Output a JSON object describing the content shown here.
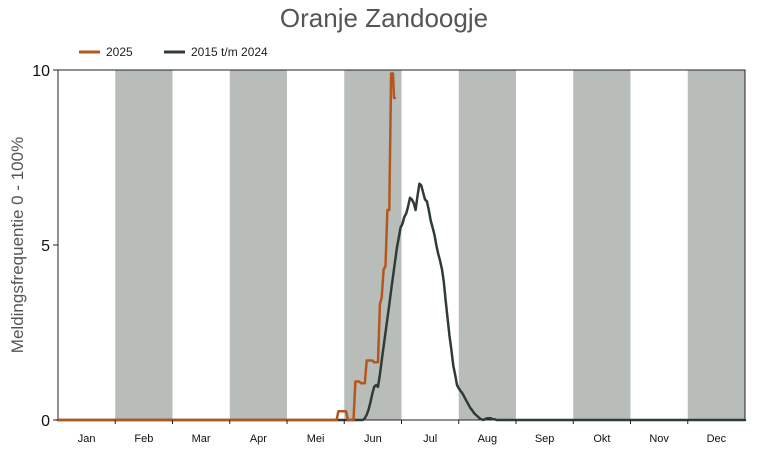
{
  "chart_data": {
    "type": "line",
    "title": "Oranje Zandoogje",
    "ylabel": "Meldingsfrequentie 0 - 100%",
    "xlabel": "",
    "ylim": [
      0,
      10
    ],
    "yticks": [
      "0",
      "5",
      "10"
    ],
    "months": [
      "Jan",
      "Feb",
      "Mar",
      "Apr",
      "Mei",
      "Jun",
      "Jul",
      "Aug",
      "Sep",
      "Okt",
      "Nov",
      "Dec"
    ],
    "shaded_months": [
      "Feb",
      "Apr",
      "Jun",
      "Aug",
      "Okt",
      "Dec"
    ],
    "grid": false,
    "legend_position": "top-left",
    "series": [
      {
        "name": "2025",
        "color": "#b5571c",
        "x": [
          0,
          148,
          149,
          150,
          153,
          154,
          157,
          158,
          160,
          161,
          163,
          164,
          167,
          168,
          170,
          171,
          172,
          173,
          174,
          175,
          176,
          177,
          178,
          178.5,
          179
        ],
        "y": [
          0,
          0,
          0.25,
          0.25,
          0.25,
          0.0,
          0.0,
          1.1,
          1.1,
          1.05,
          1.05,
          1.7,
          1.7,
          1.65,
          1.65,
          3.3,
          3.5,
          4.3,
          4.4,
          6.0,
          6.0,
          9.9,
          9.9,
          9.2,
          9.2
        ]
      },
      {
        "name": "2015 t/m 2024",
        "color": "#2f3b37",
        "x": [
          0,
          150,
          151,
          152,
          153,
          154,
          155,
          156,
          157,
          158,
          159,
          160,
          161,
          162,
          163,
          164,
          165,
          166,
          167,
          168,
          169,
          170,
          171,
          172,
          173,
          174,
          175,
          176,
          177,
          178,
          179,
          180,
          181,
          182,
          183,
          184,
          185,
          186,
          187,
          188,
          189,
          190,
          191,
          192,
          193,
          194,
          195,
          196,
          197,
          198,
          199,
          200,
          201,
          202,
          203,
          204,
          205,
          206,
          207,
          208,
          209,
          210,
          211,
          212,
          213,
          214,
          215,
          216,
          217,
          218,
          219,
          220,
          221,
          222,
          223,
          224,
          225,
          226,
          227,
          228,
          229,
          230,
          231,
          232,
          233,
          234,
          235,
          236,
          237,
          238,
          239,
          240,
          241,
          242,
          243,
          244,
          245,
          246,
          248,
          250,
          365
        ],
        "y": [
          0,
          0,
          0,
          0,
          0,
          0,
          0,
          0,
          0,
          0,
          0,
          0,
          0,
          0,
          0.05,
          0.15,
          0.3,
          0.5,
          0.75,
          0.95,
          1.0,
          0.95,
          1.3,
          1.7,
          2.1,
          2.5,
          2.9,
          3.3,
          3.7,
          4.1,
          4.5,
          4.9,
          5.2,
          5.5,
          5.6,
          5.8,
          5.9,
          6.1,
          6.35,
          6.3,
          6.2,
          6.0,
          6.4,
          6.75,
          6.7,
          6.5,
          6.3,
          6.25,
          6.0,
          5.7,
          5.5,
          5.3,
          5.0,
          4.75,
          4.55,
          4.3,
          3.95,
          3.4,
          2.9,
          2.4,
          2.0,
          1.55,
          1.3,
          1.0,
          0.9,
          0.82,
          0.75,
          0.65,
          0.55,
          0.45,
          0.35,
          0.28,
          0.2,
          0.15,
          0.1,
          0.05,
          0.02,
          0,
          0.03,
          0.05,
          0.05,
          0.05,
          0.02,
          0.02,
          0,
          0,
          0,
          0,
          0,
          0,
          0,
          0,
          0,
          0,
          0,
          0,
          0,
          0,
          0,
          0,
          0
        ]
      }
    ]
  }
}
